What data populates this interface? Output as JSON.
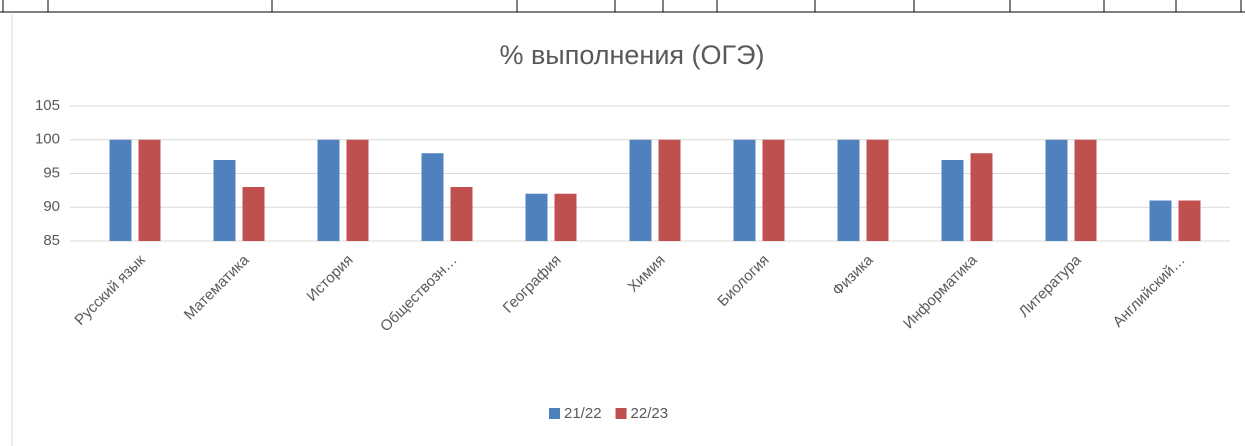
{
  "chart_data": {
    "type": "bar",
    "title": "% выполнения (ОГЭ)",
    "categories": [
      "Русский язык",
      "Математика",
      "История",
      "Обществозн…",
      "География",
      "Химия",
      "Биология",
      "Физика",
      "Информатика",
      "Литература",
      "Английский…"
    ],
    "series": [
      {
        "name": "21/22",
        "color": "#4f81bd",
        "values": [
          100,
          97,
          100,
          98,
          92,
          100,
          100,
          100,
          97,
          100,
          91
        ]
      },
      {
        "name": "22/23",
        "color": "#c0504d",
        "values": [
          100,
          93,
          100,
          93,
          92,
          100,
          100,
          100,
          98,
          100,
          91
        ]
      }
    ],
    "ylim": [
      85,
      105
    ],
    "yticks": [
      85,
      90,
      95,
      100,
      105
    ],
    "grid": true,
    "legend": "bottom"
  }
}
